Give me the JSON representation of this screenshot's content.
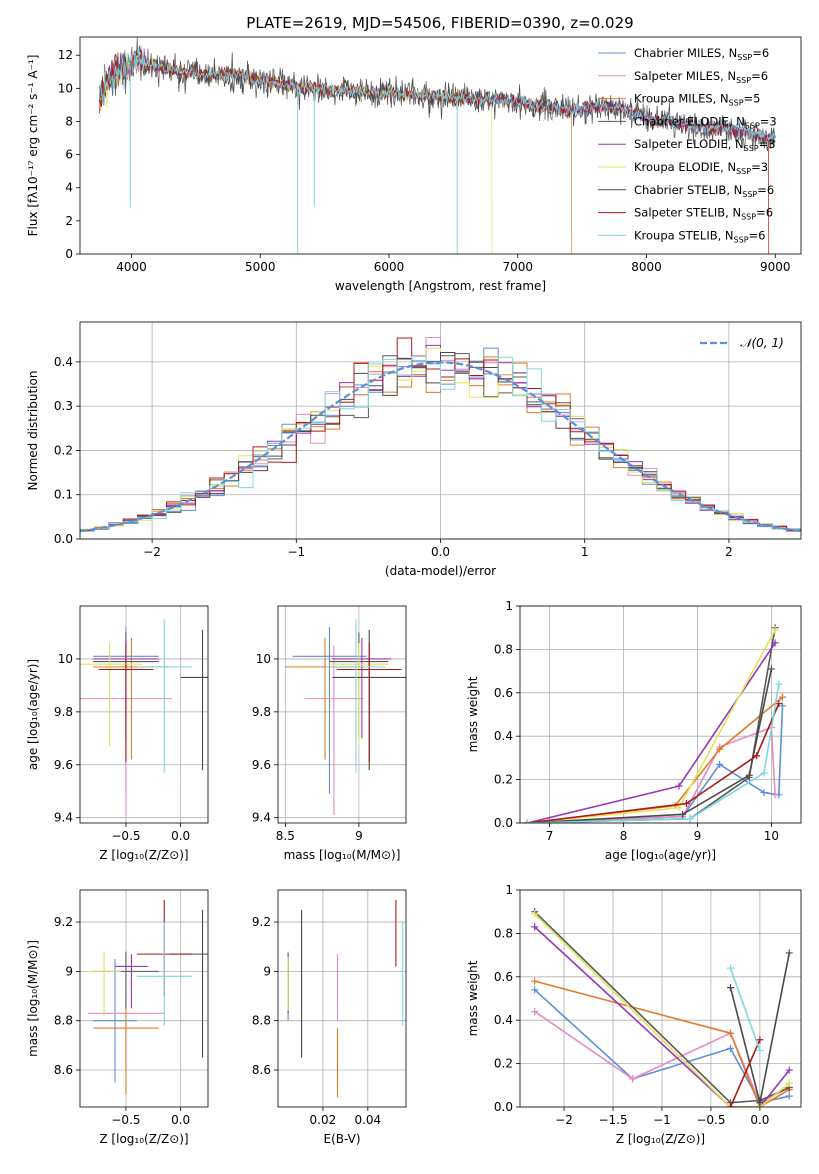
{
  "colors": {
    "series": [
      "#5b8fdb",
      "#e58bc5",
      "#e07b2a",
      "#5a5a5a",
      "#9a36b8",
      "#e3e35a",
      "#4a4a4a",
      "#b01818",
      "#7fd8e0"
    ],
    "gauss": "#5b8fdb"
  },
  "chart_data": [
    {
      "id": "spectrum",
      "type": "line",
      "title": "PLATE=2619, MJD=54506, FIBERID=0390, z=0.029",
      "xlabel": "wavelength [Angstrom, rest frame]",
      "ylabel": "Flux [fλ10⁻¹⁷ erg cm⁻² s⁻¹ A⁻¹]",
      "xlim": [
        3600,
        9200
      ],
      "ylim": [
        0,
        13.1
      ],
      "xticks": [
        4000,
        5000,
        6000,
        7000,
        8000,
        9000
      ],
      "yticks": [
        0,
        2,
        4,
        6,
        8,
        10,
        12
      ],
      "grid": false,
      "legend": "top-right",
      "legend_entries": [
        "Chabrier MILES, N_SSP=6",
        "Salpeter MILES, N_SSP=6",
        "Kroupa MILES, N_SSP=5",
        "Chabrier ELODIE, N_SSP=3",
        "Salpeter ELODIE, N_SSP=3",
        "Kroupa ELODIE, N_SSP=3",
        "Chabrier STELIB, N_SSP=6",
        "Salpeter STELIB, N_SSP=6",
        "Kroupa STELIB, N_SSP=6"
      ],
      "data_curve": {
        "x": [
          3750,
          3850,
          3950,
          4050,
          4200,
          4400,
          4600,
          4800,
          5000,
          5200,
          5400,
          5600,
          5800,
          6000,
          6200,
          6400,
          6600,
          6800,
          7000,
          7200,
          7400,
          7600,
          7800,
          8000,
          8200,
          8400,
          8600,
          8800,
          8950
        ],
        "y": [
          9.5,
          10.8,
          11.2,
          11.6,
          11.3,
          11.0,
          10.8,
          10.9,
          10.5,
          10.2,
          10.0,
          9.9,
          9.8,
          9.7,
          9.6,
          9.5,
          9.4,
          9.3,
          9.2,
          8.9,
          8.7,
          8.9,
          8.8,
          8.2,
          8.0,
          7.7,
          7.6,
          7.3,
          7.0
        ]
      }
    },
    {
      "id": "residuals",
      "type": "line",
      "xlabel": "(data-model)/error",
      "ylabel": "Normed distribution",
      "xlim": [
        -2.5,
        2.5
      ],
      "ylim": [
        0,
        0.49
      ],
      "xticks": [
        -2,
        -1,
        0,
        1,
        2
      ],
      "yticks": [
        0,
        0.1,
        0.2,
        0.3,
        0.4
      ],
      "grid": true,
      "legend": "top-right",
      "gauss_label": "𝒩(0, 1)"
    },
    {
      "id": "age-z",
      "type": "scatter",
      "xlabel": "Z [log₁₀(Z/Z⊙)]",
      "ylabel": "age  [log₁₀(age/yr)]",
      "xlim": [
        -0.92,
        0.25
      ],
      "ylim": [
        9.38,
        10.2
      ],
      "xticks": [
        -0.5,
        0.0
      ],
      "yticks": [
        9.4,
        9.6,
        9.8,
        10.0
      ],
      "points": [
        {
          "x": -0.5,
          "xerr": 0.3,
          "y": 10.01,
          "ylo": 9.49,
          "yhi": 10.12
        },
        {
          "x": -0.5,
          "xerr": 0.42,
          "y": 9.85,
          "ylo": 9.41,
          "yhi": 10.05
        },
        {
          "x": -0.45,
          "xerr": 0.35,
          "y": 9.97,
          "ylo": 9.62,
          "yhi": 10.08
        },
        {
          "x": -0.5,
          "xerr": 0.3,
          "y": 9.99,
          "ylo": 9.7,
          "yhi": 10.1
        },
        {
          "x": -0.5,
          "xerr": 0.3,
          "y": 10.0,
          "ylo": 9.7,
          "yhi": 10.08
        },
        {
          "x": -0.65,
          "xerr": 0.3,
          "y": 9.98,
          "ylo": 9.67,
          "yhi": 10.06
        },
        {
          "x": 0.2,
          "xerr": 0.2,
          "y": 9.93,
          "ylo": 9.58,
          "yhi": 10.11
        },
        {
          "x": -0.5,
          "xerr": 0.25,
          "y": 9.96,
          "ylo": 9.61,
          "yhi": 10.06
        },
        {
          "x": -0.15,
          "xerr": 0.25,
          "y": 9.97,
          "ylo": 9.57,
          "yhi": 10.15
        }
      ]
    },
    {
      "id": "age-mass",
      "type": "scatter",
      "xlabel": "mass [log₁₀(M/M⊙)]",
      "xlim": [
        8.45,
        9.32
      ],
      "ylim": [
        9.38,
        10.2
      ],
      "xticks": [
        8.5,
        9.0
      ],
      "yticks": [
        9.4,
        9.6,
        9.8,
        10.0
      ],
      "points": [
        {
          "x": 8.8,
          "xerr": 0.25,
          "y": 10.01,
          "ylo": 9.49,
          "yhi": 10.12
        },
        {
          "x": 8.83,
          "xerr": 0.2,
          "y": 9.85,
          "ylo": 9.41,
          "yhi": 10.05
        },
        {
          "x": 8.77,
          "xerr": 0.27,
          "y": 9.97,
          "ylo": 9.62,
          "yhi": 10.08
        },
        {
          "x": 9.0,
          "xerr": 0.2,
          "y": 9.99,
          "ylo": 9.7,
          "yhi": 10.1
        },
        {
          "x": 9.02,
          "xerr": 0.2,
          "y": 10.0,
          "ylo": 9.7,
          "yhi": 10.08
        },
        {
          "x": 9.0,
          "xerr": 0.2,
          "y": 9.98,
          "ylo": 9.67,
          "yhi": 10.06
        },
        {
          "x": 9.07,
          "xerr": 0.25,
          "y": 9.93,
          "ylo": 9.58,
          "yhi": 10.11
        },
        {
          "x": 9.07,
          "xerr": 0.22,
          "y": 9.96,
          "ylo": 9.61,
          "yhi": 10.06
        },
        {
          "x": 8.98,
          "xerr": 0.2,
          "y": 9.97,
          "ylo": 9.57,
          "yhi": 10.15
        }
      ]
    },
    {
      "id": "weight-age",
      "type": "line",
      "xlabel": "age  [log₁₀(age/yr)]",
      "ylabel": "mass weight",
      "xlim": [
        6.6,
        10.4
      ],
      "ylim": [
        0,
        1.0
      ],
      "xticks": [
        7,
        8,
        9,
        10
      ],
      "yticks": [
        0,
        0.2,
        0.4,
        0.6,
        0.8,
        1.0
      ],
      "series": [
        {
          "x": [
            6.7,
            8.8,
            9.3,
            9.9,
            10.1,
            10.15
          ],
          "y": [
            0,
            0.03,
            0.27,
            0.14,
            0.13,
            0.54
          ]
        },
        {
          "x": [
            6.7,
            8.8,
            9.3,
            10.0,
            10.05
          ],
          "y": [
            0,
            0.03,
            0.35,
            0.44,
            0.13
          ]
        },
        {
          "x": [
            6.7,
            8.7,
            9.3,
            10.15
          ],
          "y": [
            0,
            0.08,
            0.34,
            0.58
          ]
        },
        {
          "x": [
            6.7,
            8.9,
            9.7,
            10.05
          ],
          "y": [
            0,
            0.02,
            0.21,
            0.9
          ]
        },
        {
          "x": [
            6.7,
            8.75,
            10.05
          ],
          "y": [
            0,
            0.17,
            0.83
          ]
        },
        {
          "x": [
            6.7,
            8.75,
            10.05
          ],
          "y": [
            0,
            0.07,
            0.89
          ]
        },
        {
          "x": [
            6.7,
            8.8,
            9.7,
            10.0
          ],
          "y": [
            0,
            0.04,
            0.22,
            0.71
          ]
        },
        {
          "x": [
            6.7,
            8.85,
            9.8,
            10.1
          ],
          "y": [
            0,
            0.09,
            0.31,
            0.55
          ]
        },
        {
          "x": [
            6.7,
            8.9,
            9.9,
            10.1
          ],
          "y": [
            0,
            0.02,
            0.23,
            0.64
          ]
        }
      ]
    },
    {
      "id": "mass-z",
      "type": "scatter",
      "xlabel": "Z [log₁₀(Z/Z⊙)]",
      "ylabel": "mass [log₁₀(M/M⊙)]",
      "xlim": [
        -0.92,
        0.25
      ],
      "ylim": [
        8.45,
        9.33
      ],
      "xticks": [
        -0.5,
        0.0
      ],
      "yticks": [
        8.6,
        8.8,
        9.0,
        9.2
      ],
      "points": [
        {
          "x": -0.6,
          "xerr": 0.2,
          "y": 8.8,
          "ylo": 8.55,
          "yhi": 9.05
        },
        {
          "x": -0.5,
          "xerr": 0.35,
          "y": 8.83,
          "ylo": 8.6,
          "yhi": 9.07
        },
        {
          "x": -0.5,
          "xerr": 0.3,
          "y": 8.77,
          "ylo": 8.5,
          "yhi": 8.89
        },
        {
          "x": -0.5,
          "xerr": 0.3,
          "y": 9.0,
          "ylo": 8.85,
          "yhi": 9.08
        },
        {
          "x": -0.45,
          "xerr": 0.15,
          "y": 9.02,
          "ylo": 8.85,
          "yhi": 9.07
        },
        {
          "x": -0.7,
          "xerr": 0.15,
          "y": 9.0,
          "ylo": 8.82,
          "yhi": 9.08
        },
        {
          "x": 0.2,
          "xerr": 0.3,
          "y": 9.07,
          "ylo": 8.65,
          "yhi": 9.25
        },
        {
          "x": -0.15,
          "xerr": 0.25,
          "y": 9.07,
          "ylo": 8.9,
          "yhi": 9.29
        },
        {
          "x": -0.15,
          "xerr": 0.25,
          "y": 8.98,
          "ylo": 8.78,
          "yhi": 9.2
        }
      ]
    },
    {
      "id": "mass-ebv",
      "type": "scatter",
      "xlabel": "E(B-V)",
      "xlim": [
        0.0,
        0.057
      ],
      "ylim": [
        8.45,
        9.33
      ],
      "xticks": [
        0.02,
        0.04
      ],
      "yticks": [
        8.6,
        8.8,
        9.0,
        9.2
      ],
      "points": [
        {
          "x": 0.0045,
          "y": 8.8,
          "ylo": 8.8,
          "yhi": 9.08
        },
        {
          "x": 0.0265,
          "y": 8.83,
          "ylo": 8.8,
          "yhi": 9.07
        },
        {
          "x": 0.0265,
          "y": 8.77,
          "ylo": 8.49,
          "yhi": 8.77
        },
        {
          "x": 0.0045,
          "y": 9.0,
          "ylo": 8.83,
          "yhi": 9.07
        },
        {
          "x": 0.0045,
          "y": 9.02,
          "ylo": 8.85,
          "yhi": 9.07
        },
        {
          "x": 0.0045,
          "y": 9.0,
          "ylo": 8.84,
          "yhi": 9.06
        },
        {
          "x": 0.0105,
          "y": 9.07,
          "ylo": 8.65,
          "yhi": 9.25
        },
        {
          "x": 0.0525,
          "y": 9.07,
          "ylo": 9.02,
          "yhi": 9.29
        },
        {
          "x": 0.0555,
          "y": 8.98,
          "ylo": 8.78,
          "yhi": 9.2
        }
      ]
    },
    {
      "id": "weight-z",
      "type": "line",
      "xlabel": "Z [log₁₀(Z/Z⊙)]",
      "ylabel": "mass weight",
      "xlim": [
        -2.45,
        0.42
      ],
      "ylim": [
        0,
        1.0
      ],
      "xticks": [
        -2.0,
        -1.5,
        -1.0,
        -0.5,
        0.0
      ],
      "yticks": [
        0,
        0.2,
        0.4,
        0.6,
        0.8,
        1.0
      ],
      "series": [
        {
          "x": [
            -2.3,
            -1.3,
            -0.3,
            0.0,
            0.3
          ],
          "y": [
            0.54,
            0.13,
            0.27,
            0.02,
            0.05
          ]
        },
        {
          "x": [
            -2.3,
            -1.3,
            -0.3,
            0.0,
            0.3
          ],
          "y": [
            0.44,
            0.13,
            0.34,
            0.02,
            0.09
          ]
        },
        {
          "x": [
            -2.3,
            -0.3,
            0.0,
            0.3
          ],
          "y": [
            0.58,
            0.34,
            0.0,
            0.08
          ]
        },
        {
          "x": [
            -2.3,
            -0.3,
            0.0,
            0.3
          ],
          "y": [
            0.9,
            0.02,
            0.03,
            0.09
          ]
        },
        {
          "x": [
            -2.3,
            -0.3,
            0.0,
            0.3
          ],
          "y": [
            0.83,
            0.0,
            0.0,
            0.17
          ]
        },
        {
          "x": [
            -2.3,
            -0.3,
            0.0,
            0.3
          ],
          "y": [
            0.89,
            0.0,
            0.0,
            0.11
          ]
        },
        {
          "x": [
            -0.3,
            0.0,
            0.3
          ],
          "y": [
            0.55,
            0.02,
            0.71
          ]
        },
        {
          "x": [
            -0.3,
            0.0
          ],
          "y": [
            0.0,
            0.31
          ]
        },
        {
          "x": [
            -0.3,
            0.0
          ],
          "y": [
            0.64,
            0.26
          ]
        }
      ]
    }
  ]
}
